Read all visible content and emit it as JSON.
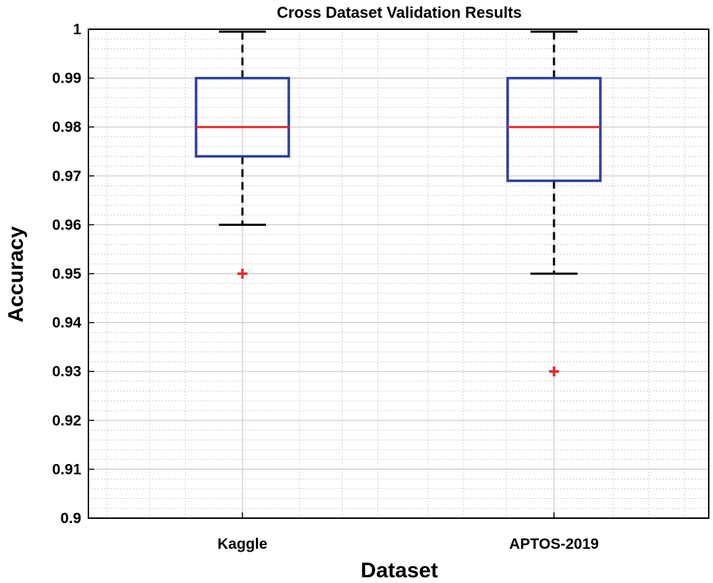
{
  "chart_data": {
    "type": "box",
    "title": "Cross Dataset Validation Results",
    "xlabel": "Dataset",
    "ylabel": "Accuracy",
    "ylim": [
      0.9,
      1.0
    ],
    "yticks": [
      "0.9",
      "0.91",
      "0.92",
      "0.93",
      "0.94",
      "0.95",
      "0.96",
      "0.97",
      "0.98",
      "0.99",
      "1"
    ],
    "ytick_values": [
      0.9,
      0.91,
      0.92,
      0.93,
      0.94,
      0.95,
      0.96,
      0.97,
      0.98,
      0.99,
      1.0
    ],
    "grid": true,
    "categories": [
      "Kaggle",
      "APTOS-2019"
    ],
    "boxes": [
      {
        "name": "Kaggle",
        "whisker_low": 0.96,
        "q1": 0.974,
        "median": 0.98,
        "q3": 0.99,
        "whisker_high": 0.9995,
        "outliers": [
          0.95
        ]
      },
      {
        "name": "APTOS-2019",
        "whisker_low": 0.95,
        "q1": 0.969,
        "median": 0.98,
        "q3": 0.99,
        "whisker_high": 0.9995,
        "outliers": [
          0.93
        ]
      }
    ],
    "colors": {
      "box": "#2b3f9e",
      "median": "#e8262b",
      "whisker": "#000000",
      "outlier": "#e8262b",
      "grid": "#c8c8c8",
      "minor_grid": "#bdbdbd"
    }
  }
}
